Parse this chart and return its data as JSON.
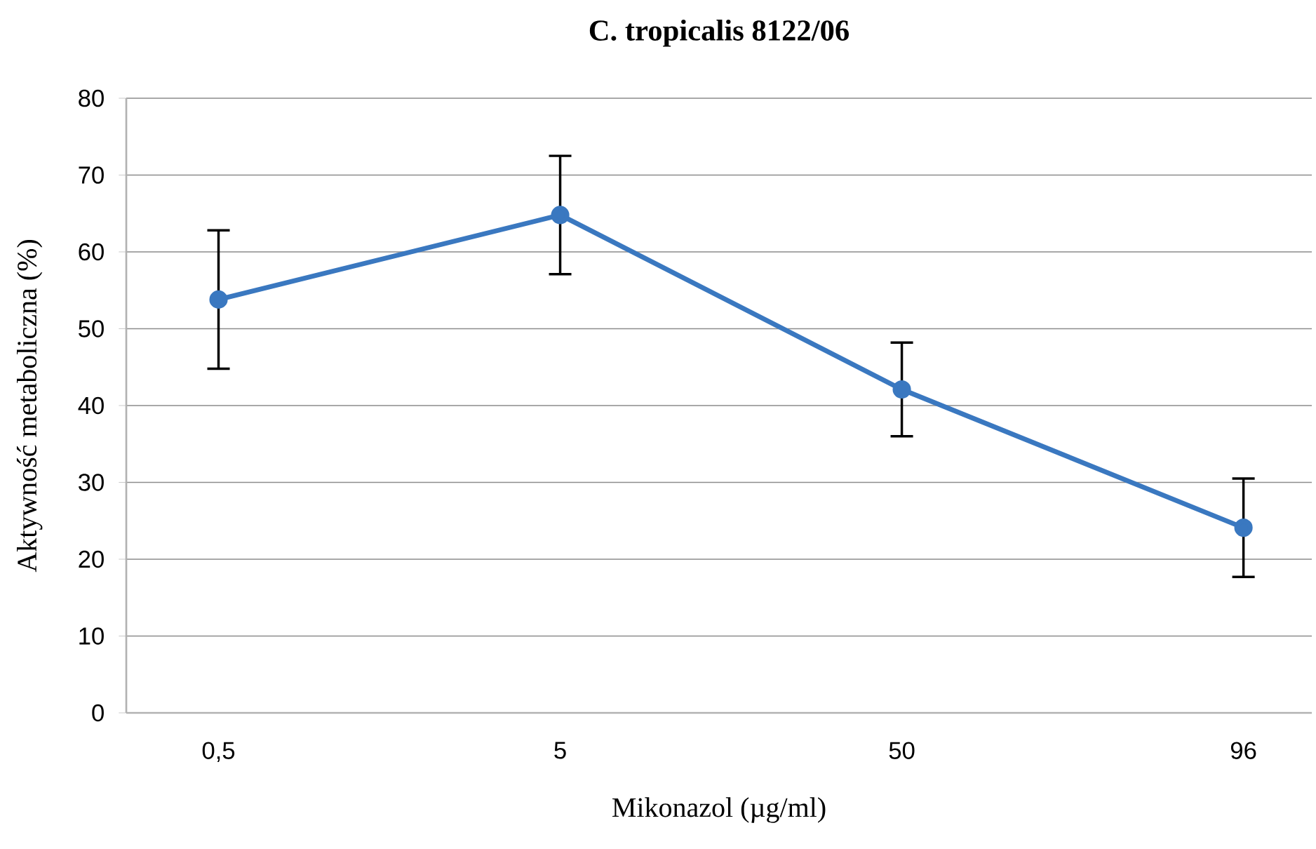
{
  "chart_data": {
    "type": "line",
    "title": "C. tropicalis 8122/06",
    "xlabel": "Mikonazol (µg/ml)",
    "ylabel": "Aktywność metaboliczna (%)",
    "categories": [
      "0,5",
      "5",
      "50",
      "96"
    ],
    "series": [
      {
        "color": "#3a78c0",
        "values": [
          53.8,
          64.8,
          42.1,
          24.1
        ],
        "errors": [
          9,
          7.7,
          6.1,
          6.4
        ]
      }
    ],
    "ylim": [
      0,
      80
    ],
    "yticks": [
      0,
      10,
      20,
      30,
      40,
      50,
      60,
      70,
      80
    ],
    "grid": "y",
    "legend": false,
    "marker": "circle",
    "line_style": "solid"
  }
}
